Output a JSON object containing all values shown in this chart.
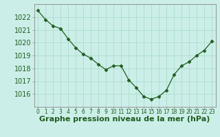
{
  "x": [
    0,
    1,
    2,
    3,
    4,
    5,
    6,
    7,
    8,
    9,
    10,
    11,
    12,
    13,
    14,
    15,
    16,
    17,
    18,
    19,
    20,
    21,
    22,
    23
  ],
  "y": [
    1022.5,
    1021.8,
    1021.3,
    1021.1,
    1020.3,
    1019.6,
    1019.1,
    1018.8,
    1018.3,
    1017.9,
    1018.2,
    1018.2,
    1017.1,
    1016.5,
    1015.8,
    1015.6,
    1015.8,
    1016.3,
    1017.5,
    1018.2,
    1018.5,
    1019.0,
    1019.4,
    1020.1
  ],
  "line_color": "#1e5c1e",
  "marker": "D",
  "marker_size": 2.5,
  "bg_color": "#cceee8",
  "grid_color": "#aaddcc",
  "xlabel": "Graphe pression niveau de la mer (hPa)",
  "xlabel_fontsize": 8,
  "yticks": [
    1016,
    1017,
    1018,
    1019,
    1020,
    1021,
    1022
  ],
  "xticks": [
    0,
    1,
    2,
    3,
    4,
    5,
    6,
    7,
    8,
    9,
    10,
    11,
    12,
    13,
    14,
    15,
    16,
    17,
    18,
    19,
    20,
    21,
    22,
    23
  ],
  "ylim": [
    1015.0,
    1023.0
  ],
  "xlim": [
    -0.5,
    23.5
  ],
  "ytick_fontsize": 7,
  "xtick_fontsize": 5.5,
  "tick_color": "#1e5c1e",
  "label_color": "#1e5c1e",
  "spine_color": "#888888"
}
